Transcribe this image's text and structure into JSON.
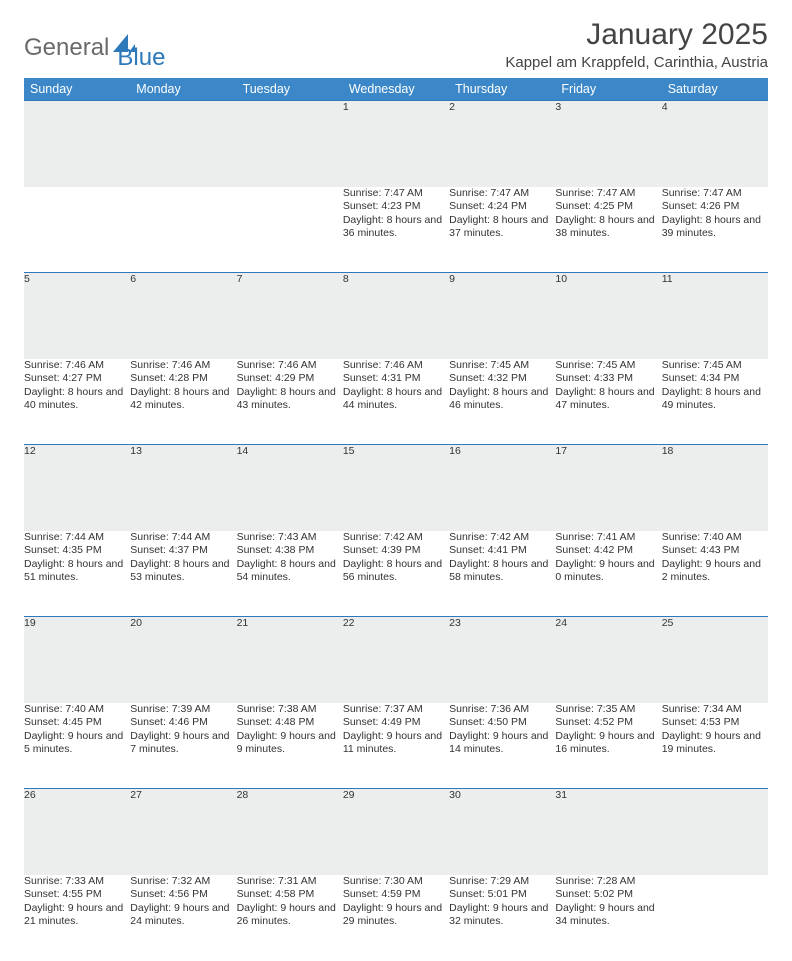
{
  "logo": {
    "general": "General",
    "blue": "Blue"
  },
  "title": "January 2025",
  "location": "Kappel am Krappfeld, Carinthia, Austria",
  "colors": {
    "header_bg": "#3b87c8",
    "header_text": "#ffffff",
    "daynum_bg": "#eceded",
    "border": "#2d79b9",
    "text": "#333333",
    "logo_gray": "#6a6a6a",
    "logo_blue": "#2d79b9"
  },
  "daynames": [
    "Sunday",
    "Monday",
    "Tuesday",
    "Wednesday",
    "Thursday",
    "Friday",
    "Saturday"
  ],
  "weeks": [
    {
      "nums": [
        "",
        "",
        "",
        "1",
        "2",
        "3",
        "4"
      ],
      "cells": [
        "",
        "",
        "",
        "Sunrise: 7:47 AM\nSunset: 4:23 PM\nDaylight: 8 hours and 36 minutes.",
        "Sunrise: 7:47 AM\nSunset: 4:24 PM\nDaylight: 8 hours and 37 minutes.",
        "Sunrise: 7:47 AM\nSunset: 4:25 PM\nDaylight: 8 hours and 38 minutes.",
        "Sunrise: 7:47 AM\nSunset: 4:26 PM\nDaylight: 8 hours and 39 minutes."
      ]
    },
    {
      "nums": [
        "5",
        "6",
        "7",
        "8",
        "9",
        "10",
        "11"
      ],
      "cells": [
        "Sunrise: 7:46 AM\nSunset: 4:27 PM\nDaylight: 8 hours and 40 minutes.",
        "Sunrise: 7:46 AM\nSunset: 4:28 PM\nDaylight: 8 hours and 42 minutes.",
        "Sunrise: 7:46 AM\nSunset: 4:29 PM\nDaylight: 8 hours and 43 minutes.",
        "Sunrise: 7:46 AM\nSunset: 4:31 PM\nDaylight: 8 hours and 44 minutes.",
        "Sunrise: 7:45 AM\nSunset: 4:32 PM\nDaylight: 8 hours and 46 minutes.",
        "Sunrise: 7:45 AM\nSunset: 4:33 PM\nDaylight: 8 hours and 47 minutes.",
        "Sunrise: 7:45 AM\nSunset: 4:34 PM\nDaylight: 8 hours and 49 minutes."
      ]
    },
    {
      "nums": [
        "12",
        "13",
        "14",
        "15",
        "16",
        "17",
        "18"
      ],
      "cells": [
        "Sunrise: 7:44 AM\nSunset: 4:35 PM\nDaylight: 8 hours and 51 minutes.",
        "Sunrise: 7:44 AM\nSunset: 4:37 PM\nDaylight: 8 hours and 53 minutes.",
        "Sunrise: 7:43 AM\nSunset: 4:38 PM\nDaylight: 8 hours and 54 minutes.",
        "Sunrise: 7:42 AM\nSunset: 4:39 PM\nDaylight: 8 hours and 56 minutes.",
        "Sunrise: 7:42 AM\nSunset: 4:41 PM\nDaylight: 8 hours and 58 minutes.",
        "Sunrise: 7:41 AM\nSunset: 4:42 PM\nDaylight: 9 hours and 0 minutes.",
        "Sunrise: 7:40 AM\nSunset: 4:43 PM\nDaylight: 9 hours and 2 minutes."
      ]
    },
    {
      "nums": [
        "19",
        "20",
        "21",
        "22",
        "23",
        "24",
        "25"
      ],
      "cells": [
        "Sunrise: 7:40 AM\nSunset: 4:45 PM\nDaylight: 9 hours and 5 minutes.",
        "Sunrise: 7:39 AM\nSunset: 4:46 PM\nDaylight: 9 hours and 7 minutes.",
        "Sunrise: 7:38 AM\nSunset: 4:48 PM\nDaylight: 9 hours and 9 minutes.",
        "Sunrise: 7:37 AM\nSunset: 4:49 PM\nDaylight: 9 hours and 11 minutes.",
        "Sunrise: 7:36 AM\nSunset: 4:50 PM\nDaylight: 9 hours and 14 minutes.",
        "Sunrise: 7:35 AM\nSunset: 4:52 PM\nDaylight: 9 hours and 16 minutes.",
        "Sunrise: 7:34 AM\nSunset: 4:53 PM\nDaylight: 9 hours and 19 minutes."
      ]
    },
    {
      "nums": [
        "26",
        "27",
        "28",
        "29",
        "30",
        "31",
        ""
      ],
      "cells": [
        "Sunrise: 7:33 AM\nSunset: 4:55 PM\nDaylight: 9 hours and 21 minutes.",
        "Sunrise: 7:32 AM\nSunset: 4:56 PM\nDaylight: 9 hours and 24 minutes.",
        "Sunrise: 7:31 AM\nSunset: 4:58 PM\nDaylight: 9 hours and 26 minutes.",
        "Sunrise: 7:30 AM\nSunset: 4:59 PM\nDaylight: 9 hours and 29 minutes.",
        "Sunrise: 7:29 AM\nSunset: 5:01 PM\nDaylight: 9 hours and 32 minutes.",
        "Sunrise: 7:28 AM\nSunset: 5:02 PM\nDaylight: 9 hours and 34 minutes.",
        ""
      ]
    }
  ]
}
